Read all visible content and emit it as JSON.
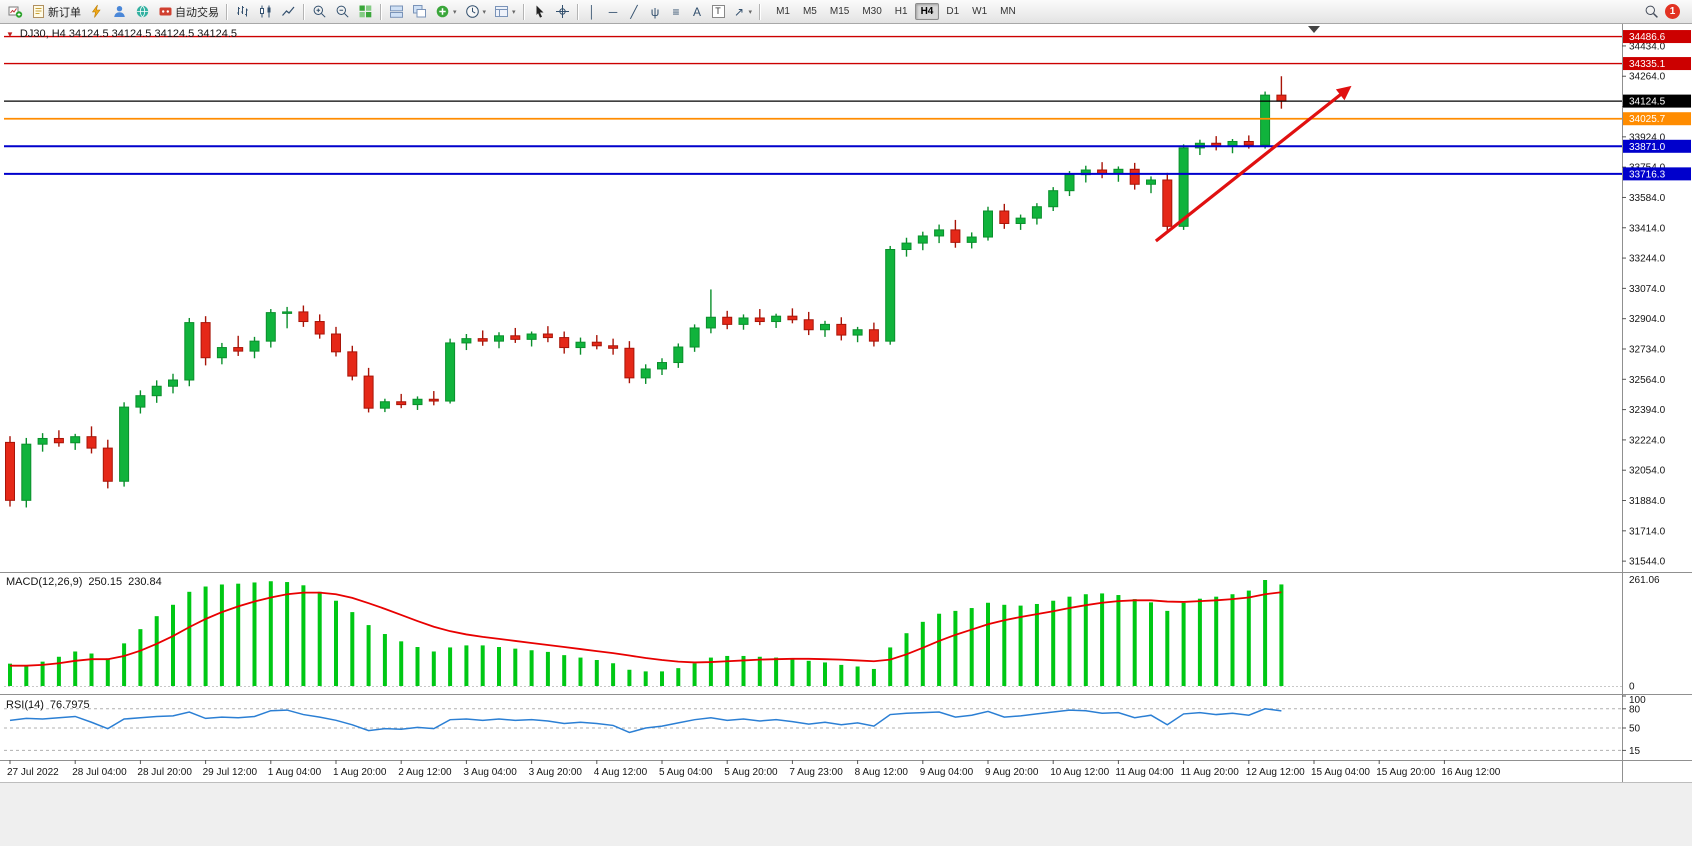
{
  "toolbar": {
    "dropdown_glyph": "▾",
    "items": [
      {
        "name": "new-chart-button",
        "icon": "newchart"
      },
      {
        "name": "new-order-button",
        "icon": "neworder",
        "label": "新订单"
      },
      {
        "name": "one-click-trading-button",
        "icon": "bolt"
      },
      {
        "name": "profile-button",
        "icon": "person"
      },
      {
        "name": "community-button",
        "icon": "globe"
      },
      {
        "name": "auto-trading-button",
        "icon": "autotrade",
        "label": "自动交易"
      },
      {
        "sep": true
      },
      {
        "name": "bar-chart-button",
        "icon": "bars"
      },
      {
        "name": "candlestick-chart-button",
        "icon": "candles"
      },
      {
        "name": "line-chart-button",
        "icon": "linechart"
      },
      {
        "sep": true
      },
      {
        "name": "zoom-in-button",
        "icon": "zoomin"
      },
      {
        "name": "zoom-out-button",
        "icon": "zoomout"
      },
      {
        "name": "tile-windows-button",
        "icon": "tiles"
      },
      {
        "sep": true
      },
      {
        "name": "arrange-windows-button",
        "icon": "arrange1"
      },
      {
        "name": "cascade-windows-button",
        "icon": "arrange2"
      },
      {
        "name": "indicators-button",
        "icon": "indplus",
        "dropdown": true
      },
      {
        "name": "periods-button",
        "icon": "clock",
        "dropdown": true
      },
      {
        "name": "templates-button",
        "icon": "template",
        "dropdown": true
      },
      {
        "sep": true
      },
      {
        "name": "cursor-button",
        "icon": "cursor"
      },
      {
        "name": "crosshair-button",
        "icon": "crosshair"
      },
      {
        "sep": true
      },
      {
        "name": "vertical-line-button",
        "glyph": "│"
      },
      {
        "name": "horizontal-line-button",
        "glyph": "─"
      },
      {
        "name": "trendline-button",
        "glyph": "╱"
      },
      {
        "name": "fibonacci-button",
        "glyph": "ψ"
      },
      {
        "name": "shapes-button",
        "glyph": "≡"
      },
      {
        "name": "text-button",
        "glyph": "A"
      },
      {
        "name": "text-label-button",
        "glyph": "T",
        "boxed": true
      },
      {
        "name": "arrow-objects-button",
        "glyph": "↗",
        "dropdown": true
      },
      {
        "sep": true
      }
    ],
    "timeframes": [
      "M1",
      "M5",
      "M15",
      "M30",
      "H1",
      "H4",
      "D1",
      "W1",
      "MN"
    ],
    "active_timeframe": "H4",
    "notification_count": "1"
  },
  "overlays": {
    "symbol_marker_glyph": "▼",
    "symbol_ohlc": "DJ30, H4  34124.5 34124.5 34124.5 34124.5"
  },
  "indicators": {
    "macd": {
      "title": "MACD(12,26,9)",
      "value_main": "250.15",
      "value_signal": "230.84",
      "axis_labels": [
        "261.06",
        "0"
      ],
      "histogram_color": "#00c814",
      "signal_color": "#e80000"
    },
    "rsi": {
      "title": "RSI(14)",
      "value": "76.7975",
      "axis_levels": [
        100,
        80,
        50,
        15
      ],
      "dashed_levels": [
        80,
        50,
        15
      ],
      "line_color": "#2b7fd4"
    }
  },
  "chart_data": {
    "type": "candlestick",
    "symbol": "DJ30",
    "period": "H4",
    "up_color": "#10b33c",
    "up_stroke": "#0a8f2c",
    "down_color": "#e52818",
    "down_stroke": "#a81408",
    "price_ticks": [
      34434,
      34264,
      34094,
      33924,
      33754,
      33584,
      33414,
      33244,
      33074,
      32904,
      32734,
      32564,
      32394,
      32224,
      32054,
      31884,
      31714,
      31544
    ],
    "levels": [
      {
        "price": 34486.6,
        "label": "34486.6",
        "color": "#cc0000",
        "width": 1.4
      },
      {
        "price": 34335.1,
        "label": "34335.1",
        "color": "#cc0000",
        "width": 1.4
      },
      {
        "price": 34124.5,
        "label": "34124.5",
        "color": "#000000",
        "width": 1.2
      },
      {
        "price": 34025.7,
        "label": "34025.7",
        "color": "#ff8c00",
        "width": 1.8
      },
      {
        "price": 33871.0,
        "label": "33871.0",
        "color": "#0000cc",
        "width": 2
      },
      {
        "price": 33716.3,
        "label": "33716.3",
        "color": "#0000cc",
        "width": 2
      }
    ],
    "trend_arrow": {
      "from_bar": 70.3,
      "from_price": 33340,
      "to_bar": 82.3,
      "to_price": 34210,
      "color": "#e01010"
    },
    "time_labels": [
      "27 Jul 2022",
      "28 Jul 04:00",
      "28 Jul 20:00",
      "29 Jul 12:00",
      "1 Aug 04:00",
      "1 Aug 20:00",
      "2 Aug 12:00",
      "3 Aug 04:00",
      "3 Aug 20:00",
      "4 Aug 12:00",
      "5 Aug 04:00",
      "5 Aug 20:00",
      "7 Aug 23:00",
      "8 Aug 12:00",
      "9 Aug 04:00",
      "9 Aug 20:00",
      "10 Aug 12:00",
      "11 Aug 04:00",
      "11 Aug 20:00",
      "12 Aug 12:00",
      "15 Aug 04:00",
      "15 Aug 20:00",
      "16 Aug 12:00"
    ],
    "candles": [
      [
        32210,
        32245,
        31850,
        31885
      ],
      [
        31885,
        32235,
        31845,
        32200
      ],
      [
        32200,
        32262,
        32158,
        32232
      ],
      [
        32232,
        32278,
        32186,
        32208
      ],
      [
        32208,
        32258,
        32168,
        32242
      ],
      [
        32242,
        32300,
        32148,
        32178
      ],
      [
        32178,
        32225,
        31952,
        31992
      ],
      [
        31992,
        32435,
        31962,
        32408
      ],
      [
        32408,
        32502,
        32372,
        32472
      ],
      [
        32472,
        32558,
        32432,
        32525
      ],
      [
        32525,
        32595,
        32485,
        32560
      ],
      [
        32560,
        32908,
        32525,
        32882
      ],
      [
        32882,
        32918,
        32642,
        32685
      ],
      [
        32685,
        32768,
        32648,
        32742
      ],
      [
        32742,
        32808,
        32695,
        32722
      ],
      [
        32722,
        32802,
        32682,
        32778
      ],
      [
        32778,
        32958,
        32742,
        32938
      ],
      [
        32938,
        32970,
        32850,
        32942
      ],
      [
        32942,
        32978,
        32858,
        32888
      ],
      [
        32888,
        32928,
        32792,
        32818
      ],
      [
        32818,
        32858,
        32692,
        32718
      ],
      [
        32718,
        32752,
        32558,
        32582
      ],
      [
        32582,
        32628,
        32378,
        32402
      ],
      [
        32402,
        32455,
        32380,
        32438
      ],
      [
        32438,
        32482,
        32402,
        32422
      ],
      [
        32422,
        32468,
        32392,
        32452
      ],
      [
        32452,
        32498,
        32418,
        32442
      ],
      [
        32442,
        32792,
        32428,
        32768
      ],
      [
        32768,
        32818,
        32728,
        32792
      ],
      [
        32792,
        32838,
        32752,
        32778
      ],
      [
        32778,
        32828,
        32738,
        32808
      ],
      [
        32808,
        32852,
        32768,
        32788
      ],
      [
        32788,
        32832,
        32748,
        32818
      ],
      [
        32818,
        32862,
        32772,
        32798
      ],
      [
        32798,
        32832,
        32708,
        32742
      ],
      [
        32742,
        32798,
        32702,
        32772
      ],
      [
        32772,
        32812,
        32732,
        32752
      ],
      [
        32752,
        32792,
        32702,
        32738
      ],
      [
        32738,
        32778,
        32542,
        32572
      ],
      [
        32572,
        32648,
        32538,
        32622
      ],
      [
        32622,
        32682,
        32588,
        32658
      ],
      [
        32658,
        32765,
        32628,
        32745
      ],
      [
        32745,
        32872,
        32718,
        32852
      ],
      [
        32852,
        33068,
        32822,
        32912
      ],
      [
        32912,
        32948,
        32845,
        32872
      ],
      [
        32872,
        32928,
        32842,
        32908
      ],
      [
        32908,
        32958,
        32868,
        32888
      ],
      [
        32888,
        32932,
        32852,
        32918
      ],
      [
        32918,
        32962,
        32878,
        32898
      ],
      [
        32898,
        32942,
        32812,
        32842
      ],
      [
        32842,
        32892,
        32802,
        32872
      ],
      [
        32872,
        32912,
        32782,
        32812
      ],
      [
        32812,
        32858,
        32772,
        32842
      ],
      [
        32842,
        32882,
        32748,
        32778
      ],
      [
        32778,
        33312,
        32758,
        33292
      ],
      [
        33292,
        33358,
        33252,
        33328
      ],
      [
        33328,
        33392,
        33288,
        33368
      ],
      [
        33368,
        33432,
        33328,
        33402
      ],
      [
        33402,
        33458,
        33302,
        33332
      ],
      [
        33332,
        33388,
        33298,
        33362
      ],
      [
        33362,
        33532,
        33342,
        33508
      ],
      [
        33508,
        33548,
        33408,
        33438
      ],
      [
        33438,
        33488,
        33402,
        33468
      ],
      [
        33468,
        33552,
        33432,
        33532
      ],
      [
        33532,
        33642,
        33508,
        33622
      ],
      [
        33622,
        33732,
        33592,
        33712
      ],
      [
        33712,
        33762,
        33668,
        33738
      ],
      [
        33738,
        33782,
        33692,
        33718
      ],
      [
        33718,
        33758,
        33672,
        33742
      ],
      [
        33742,
        33778,
        33628,
        33658
      ],
      [
        33658,
        33702,
        33608,
        33682
      ],
      [
        33682,
        33722,
        33392,
        33422
      ],
      [
        33422,
        33882,
        33402,
        33862
      ],
      [
        33862,
        33908,
        33822,
        33888
      ],
      [
        33888,
        33928,
        33848,
        33872
      ],
      [
        33872,
        33912,
        33832,
        33898
      ],
      [
        33898,
        33932,
        33858,
        33878
      ],
      [
        33878,
        34178,
        33858,
        34158
      ],
      [
        34158,
        34264,
        34082,
        34124.5
      ]
    ],
    "macd_scale_max": 261.06,
    "macd_main": [
      55,
      50,
      60,
      72,
      85,
      80,
      68,
      105,
      140,
      172,
      200,
      232,
      245,
      250,
      252,
      255,
      258,
      256,
      248,
      232,
      210,
      182,
      150,
      128,
      110,
      96,
      85,
      95,
      100,
      100,
      96,
      92,
      88,
      84,
      76,
      70,
      64,
      56,
      40,
      36,
      36,
      44,
      56,
      70,
      74,
      74,
      72,
      70,
      68,
      62,
      58,
      52,
      48,
      42,
      95,
      130,
      158,
      178,
      185,
      192,
      205,
      200,
      198,
      202,
      210,
      220,
      226,
      228,
      224,
      214,
      206,
      185,
      205,
      215,
      220,
      226,
      235,
      261.06,
      250.15
    ],
    "macd_signal": [
      50,
      50,
      52,
      56,
      62,
      66,
      66,
      74,
      87,
      104,
      123,
      145,
      165,
      182,
      196,
      208,
      218,
      226,
      230,
      230,
      226,
      217,
      204,
      190,
      175,
      160,
      146,
      135,
      127,
      121,
      116,
      111,
      106,
      101,
      96,
      91,
      86,
      81,
      75,
      69,
      64,
      60,
      58,
      59,
      61,
      63,
      65,
      66,
      67,
      67,
      66,
      65,
      63,
      61,
      65,
      78,
      94,
      111,
      126,
      139,
      152,
      162,
      170,
      177,
      184,
      192,
      199,
      205,
      209,
      211,
      211,
      208,
      207,
      209,
      211,
      214,
      218,
      226,
      230.84
    ],
    "rsi_values": [
      62,
      65,
      64,
      66,
      68,
      59,
      49,
      64,
      66,
      68,
      69,
      75,
      65,
      67,
      66,
      68,
      77,
      78,
      71,
      67,
      62,
      55,
      46,
      49,
      48,
      51,
      49,
      63,
      64,
      62,
      64,
      62,
      63,
      61,
      57,
      59,
      57,
      54,
      43,
      50,
      53,
      58,
      63,
      66,
      62,
      64,
      61,
      63,
      60,
      56,
      59,
      55,
      58,
      53,
      71,
      73,
      74,
      75,
      67,
      70,
      76,
      67,
      69,
      72,
      75,
      78,
      77,
      73,
      74,
      66,
      70,
      55,
      72,
      74,
      71,
      73,
      70,
      80,
      76.8
    ]
  }
}
